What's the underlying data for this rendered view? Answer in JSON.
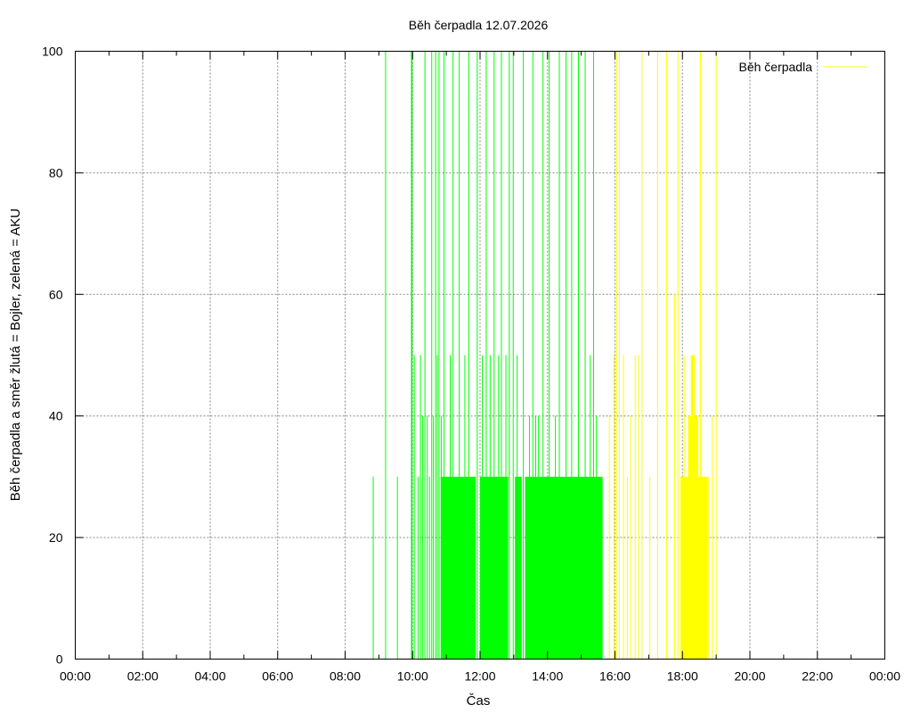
{
  "chart_data": {
    "type": "bar",
    "title": "Běh čerpadla 12.07.2026",
    "xlabel": "Čas",
    "ylabel": "Běh čerpadla a směr žlutá = Bojler, zelená = AKU",
    "ylim": [
      0,
      100
    ],
    "xlim": [
      "00:00",
      "24:00"
    ],
    "y_ticks": [
      "0",
      "20",
      "40",
      "60",
      "80",
      "100"
    ],
    "x_ticks": [
      "00:00",
      "02:00",
      "04:00",
      "06:00",
      "08:00",
      "10:00",
      "12:00",
      "14:00",
      "16:00",
      "18:00",
      "20:00",
      "22:00",
      "00:00"
    ],
    "grid": true,
    "legend": {
      "position": "top-right",
      "label": "Běh čerpadla"
    },
    "colors": {
      "aku": "#00ff00",
      "bojler": "#ffff00",
      "grid": "#888888"
    },
    "series": [
      {
        "direction": "AKU",
        "color": "#00ff00",
        "spikes": [
          [
            "08:50",
            30
          ],
          [
            "09:12",
            100
          ],
          [
            "09:33",
            30
          ],
          [
            "09:58",
            100
          ],
          [
            "09:59",
            100
          ],
          [
            "10:03",
            50
          ],
          [
            "10:10",
            30
          ],
          [
            "10:14",
            50
          ],
          [
            "10:18",
            40
          ],
          [
            "10:22",
            100
          ],
          [
            "10:26",
            40
          ],
          [
            "10:30",
            30
          ],
          [
            "10:34",
            100
          ],
          [
            "10:37",
            40
          ],
          [
            "10:41",
            100
          ],
          [
            "10:44",
            50
          ],
          [
            "10:47",
            100
          ],
          [
            "10:51",
            40
          ],
          [
            "10:56",
            100
          ],
          [
            "11:07",
            50
          ],
          [
            "11:12",
            100
          ],
          [
            "11:23",
            100
          ],
          [
            "11:33",
            50
          ],
          [
            "11:40",
            100
          ],
          [
            "11:55",
            100
          ],
          [
            "12:04",
            50
          ],
          [
            "12:11",
            100
          ],
          [
            "12:18",
            50
          ],
          [
            "12:25",
            100
          ],
          [
            "12:33",
            50
          ],
          [
            "12:38",
            100
          ],
          [
            "12:46",
            50
          ],
          [
            "12:52",
            100
          ],
          [
            "12:59",
            100
          ],
          [
            "13:06",
            50
          ],
          [
            "13:17",
            100
          ],
          [
            "13:28",
            40
          ],
          [
            "13:34",
            100
          ],
          [
            "13:39",
            40
          ],
          [
            "13:44",
            40
          ],
          [
            "13:52",
            100
          ],
          [
            "14:03",
            100
          ],
          [
            "14:14",
            40
          ],
          [
            "14:21",
            100
          ],
          [
            "14:33",
            100
          ],
          [
            "14:43",
            100
          ],
          [
            "14:55",
            100
          ],
          [
            "15:07",
            100
          ],
          [
            "15:16",
            50
          ],
          [
            "15:22",
            100
          ],
          [
            "15:27",
            40
          ]
        ],
        "blocks": [
          [
            "10:50",
            "11:52",
            30
          ],
          [
            "12:00",
            "12:50",
            30
          ],
          [
            "13:02",
            "13:14",
            30
          ],
          [
            "13:20",
            "15:38",
            30
          ]
        ]
      },
      {
        "direction": "Bojler",
        "color": "#ffff00",
        "spikes": [
          [
            "15:50",
            40
          ],
          [
            "15:58",
            50
          ],
          [
            "16:03",
            100
          ],
          [
            "16:08",
            100
          ],
          [
            "16:15",
            50
          ],
          [
            "16:22",
            30
          ],
          [
            "16:28",
            40
          ],
          [
            "16:36",
            50
          ],
          [
            "16:42",
            50
          ],
          [
            "16:48",
            100
          ],
          [
            "17:02",
            30
          ],
          [
            "17:16",
            100
          ],
          [
            "17:32",
            100
          ],
          [
            "17:46",
            60
          ],
          [
            "17:52",
            100
          ],
          [
            "17:57",
            30
          ],
          [
            "18:03",
            50
          ],
          [
            "18:20",
            50
          ],
          [
            "18:32",
            100
          ],
          [
            "18:46",
            30
          ],
          [
            "18:53",
            40
          ],
          [
            "19:00",
            100
          ]
        ],
        "blocks": [
          [
            "17:58",
            "18:12",
            30
          ],
          [
            "18:10",
            "18:28",
            40
          ],
          [
            "18:15",
            "18:22",
            50
          ],
          [
            "18:26",
            "18:44",
            30
          ]
        ]
      }
    ]
  }
}
